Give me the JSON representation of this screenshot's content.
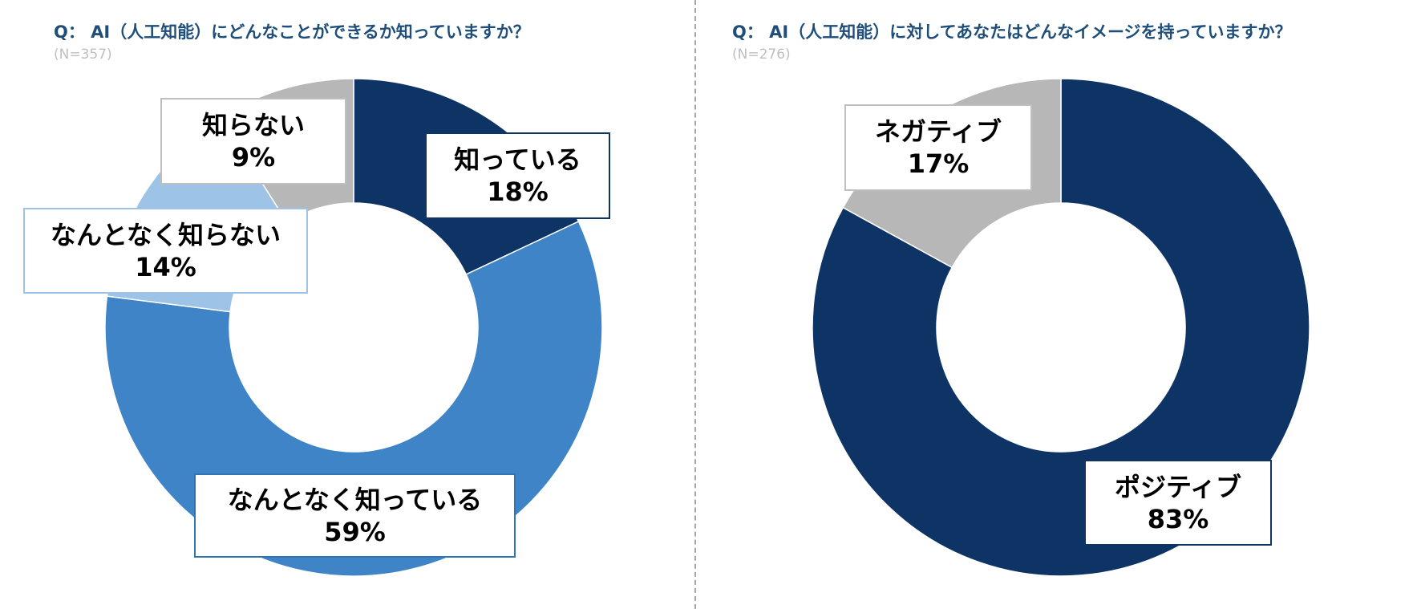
{
  "colors": {
    "dark_navy": "#0e3466",
    "mid_blue": "#3f84c6",
    "light_blue": "#9dc3e6",
    "gray": "#b7b7b7",
    "title": "#1f4e79",
    "n_text": "#bfbfbf"
  },
  "left": {
    "title": "Q： AI（人工知能）にどんなことができるか知っていますか？",
    "n": "(N=357)"
  },
  "right": {
    "title": "Q： AI（人工知能）に対してあなたはどんなイメージを持っていますか？",
    "n": "(N=276)"
  },
  "chart_data": [
    {
      "type": "pie",
      "title": "Q： AI（人工知能）にどんなことができるか知っていますか？",
      "subtitle": "(N=357)",
      "donut": true,
      "slices": [
        {
          "label": "知っている",
          "value": 18,
          "value_label": "18%",
          "color": "#0e3466"
        },
        {
          "label": "なんとなく知っている",
          "value": 59,
          "value_label": "59%",
          "color": "#3f84c6"
        },
        {
          "label": "なんとなく知らない",
          "value": 14,
          "value_label": "14%",
          "color": "#9dc3e6"
        },
        {
          "label": "知らない",
          "value": 9,
          "value_label": "9%",
          "color": "#b7b7b7"
        }
      ]
    },
    {
      "type": "pie",
      "title": "Q： AI（人工知能）に対してあなたはどんなイメージを持っていますか？",
      "subtitle": "(N=276)",
      "donut": true,
      "slices": [
        {
          "label": "ポジティブ",
          "value": 83,
          "value_label": "83%",
          "color": "#0e3466"
        },
        {
          "label": "ネガティブ",
          "value": 17,
          "value_label": "17%",
          "color": "#b7b7b7"
        }
      ]
    }
  ]
}
